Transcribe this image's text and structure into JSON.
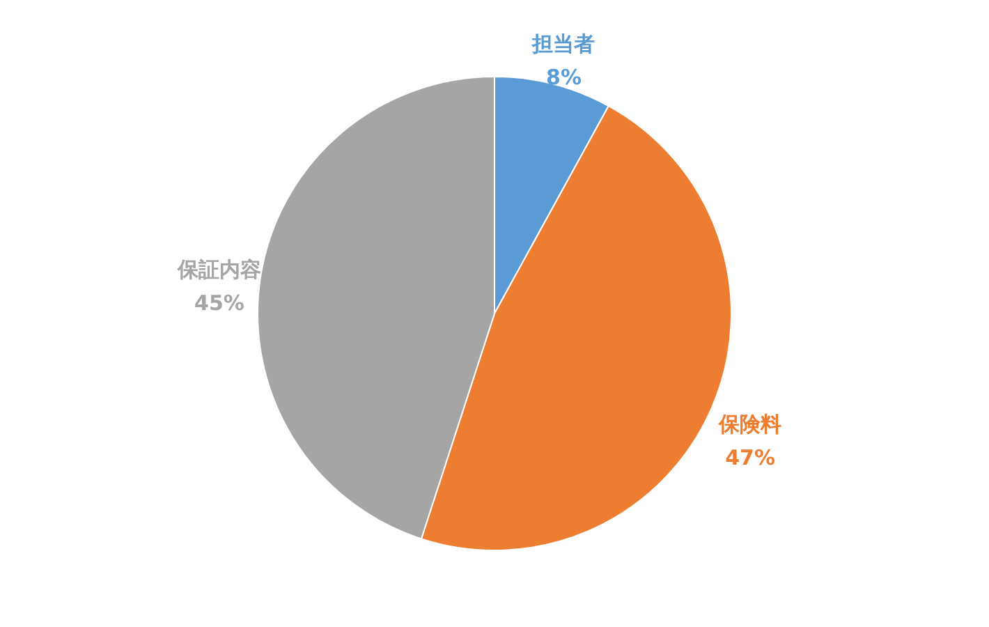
{
  "chart_data": {
    "type": "pie",
    "categories": [
      "担当者",
      "保険料",
      "保証内容"
    ],
    "values": [
      8,
      47,
      45
    ],
    "value_labels": [
      "8%",
      "47%",
      "45%"
    ],
    "colors": [
      "#5b9bd5",
      "#ed7d31",
      "#a5a5a5"
    ],
    "legend": false
  }
}
